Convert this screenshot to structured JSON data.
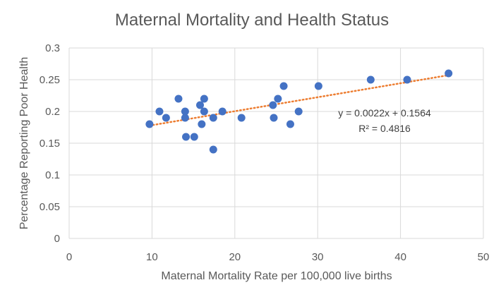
{
  "chart_data": {
    "type": "scatter",
    "title": "Maternal Mortality and Health Status",
    "xlabel": "Maternal Mortality Rate per 100,000 live births",
    "ylabel": "Percentage Reporting Poor Health",
    "xlim": [
      0,
      50
    ],
    "ylim": [
      0,
      0.3
    ],
    "x_ticks": [
      "0",
      "10",
      "20",
      "30",
      "40",
      "50"
    ],
    "y_ticks": [
      "0",
      "0.05",
      "0.1",
      "0.15",
      "0.2",
      "0.25",
      "0.3"
    ],
    "grid": true,
    "legend": "none",
    "point_color": "#4472c4",
    "trendline_color": "#ed7d31",
    "trendline": {
      "type": "linear",
      "slope": 0.0022,
      "intercept": 0.1564,
      "x_range": [
        9.7,
        45.8
      ],
      "equation": "y = 0.0022x + 0.1564",
      "r_squared": "R² = 0.4816"
    },
    "points": [
      {
        "x": 9.7,
        "y": 0.18
      },
      {
        "x": 10.9,
        "y": 0.2
      },
      {
        "x": 11.7,
        "y": 0.19
      },
      {
        "x": 13.2,
        "y": 0.22
      },
      {
        "x": 14.0,
        "y": 0.2
      },
      {
        "x": 14.0,
        "y": 0.19
      },
      {
        "x": 14.1,
        "y": 0.16
      },
      {
        "x": 15.1,
        "y": 0.16
      },
      {
        "x": 15.8,
        "y": 0.21
      },
      {
        "x": 16.0,
        "y": 0.18
      },
      {
        "x": 16.3,
        "y": 0.22
      },
      {
        "x": 16.3,
        "y": 0.2
      },
      {
        "x": 17.4,
        "y": 0.19
      },
      {
        "x": 17.4,
        "y": 0.14
      },
      {
        "x": 18.5,
        "y": 0.2
      },
      {
        "x": 20.8,
        "y": 0.19
      },
      {
        "x": 24.6,
        "y": 0.21
      },
      {
        "x": 24.7,
        "y": 0.19
      },
      {
        "x": 25.2,
        "y": 0.22
      },
      {
        "x": 25.9,
        "y": 0.24
      },
      {
        "x": 26.7,
        "y": 0.18
      },
      {
        "x": 27.7,
        "y": 0.2
      },
      {
        "x": 30.1,
        "y": 0.24
      },
      {
        "x": 36.4,
        "y": 0.25
      },
      {
        "x": 40.8,
        "y": 0.25
      },
      {
        "x": 45.8,
        "y": 0.26
      }
    ]
  }
}
